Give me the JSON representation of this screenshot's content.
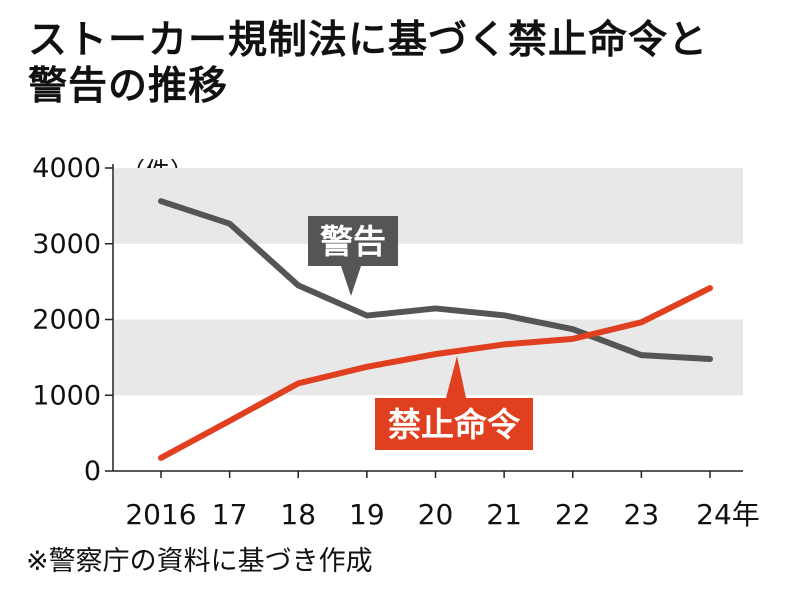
{
  "title": {
    "line1": "ストーカー規制法に基づく禁止命令と",
    "line2": "警告の推移"
  },
  "unit_label": "（件）",
  "source_note": "※警察庁の資料に基づき作成",
  "colors": {
    "warning_line": "#555555",
    "prohibition_line": "#e0401f",
    "band": "#e8e8e8",
    "axis": "#222222"
  },
  "chart_data": {
    "type": "line",
    "title": "ストーカー規制法に基づく禁止命令と警告の推移",
    "xlabel": "",
    "ylabel": "（件）",
    "categories": [
      "2016",
      "17",
      "18",
      "19",
      "20",
      "21",
      "22",
      "23",
      "24年"
    ],
    "ylim": [
      0,
      4000
    ],
    "yticks": [
      "0",
      "1000",
      "2000",
      "3000",
      "4000"
    ],
    "grid": "alternating horizontal bands",
    "series": [
      {
        "name": "警告",
        "values": [
          3562,
          3265,
          2451,
          2052,
          2146,
          2055,
          1872,
          1529,
          1478
        ]
      },
      {
        "name": "禁止命令",
        "values": [
          173,
          662,
          1157,
          1375,
          1543,
          1671,
          1744,
          1963,
          2415
        ]
      }
    ]
  }
}
